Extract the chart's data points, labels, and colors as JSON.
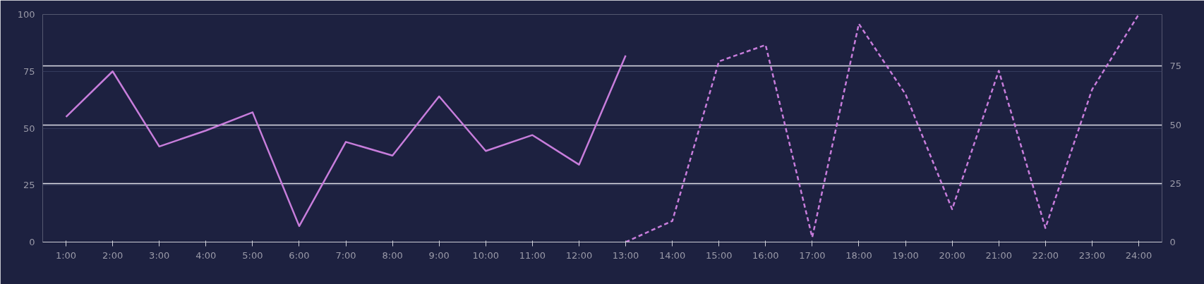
{
  "chart_data": {
    "type": "line",
    "categories": [
      "1:00",
      "2:00",
      "3:00",
      "4:00",
      "5:00",
      "6:00",
      "7:00",
      "8:00",
      "9:00",
      "10:00",
      "11:00",
      "12:00",
      "13:00",
      "14:00",
      "15:00",
      "16:00",
      "17:00",
      "18:00",
      "19:00",
      "20:00",
      "21:00",
      "22:00",
      "23:00",
      "24:00"
    ],
    "series": [
      {
        "color": "#c77ddb",
        "line_style": "solid",
        "values": [
          55,
          75,
          42,
          49,
          57,
          7,
          44,
          38,
          64,
          40,
          47,
          34,
          82,
          null,
          null,
          null,
          null,
          null,
          null,
          null,
          null,
          null,
          null,
          null
        ]
      },
      {
        "color": "#c77ddb",
        "line_style": "dashed",
        "axis": "y2",
        "values": [
          null,
          null,
          null,
          null,
          null,
          null,
          null,
          null,
          null,
          null,
          null,
          null,
          0,
          9,
          77,
          84,
          2,
          93,
          63,
          14,
          73,
          6,
          65,
          97
        ]
      }
    ],
    "ylim": [
      0,
      100
    ],
    "yticks": [
      0,
      25,
      50,
      75,
      100
    ],
    "y2lim": [
      0,
      97
    ],
    "y2ticks": [
      0,
      25,
      50,
      75
    ],
    "grid": true,
    "marker": "none"
  }
}
